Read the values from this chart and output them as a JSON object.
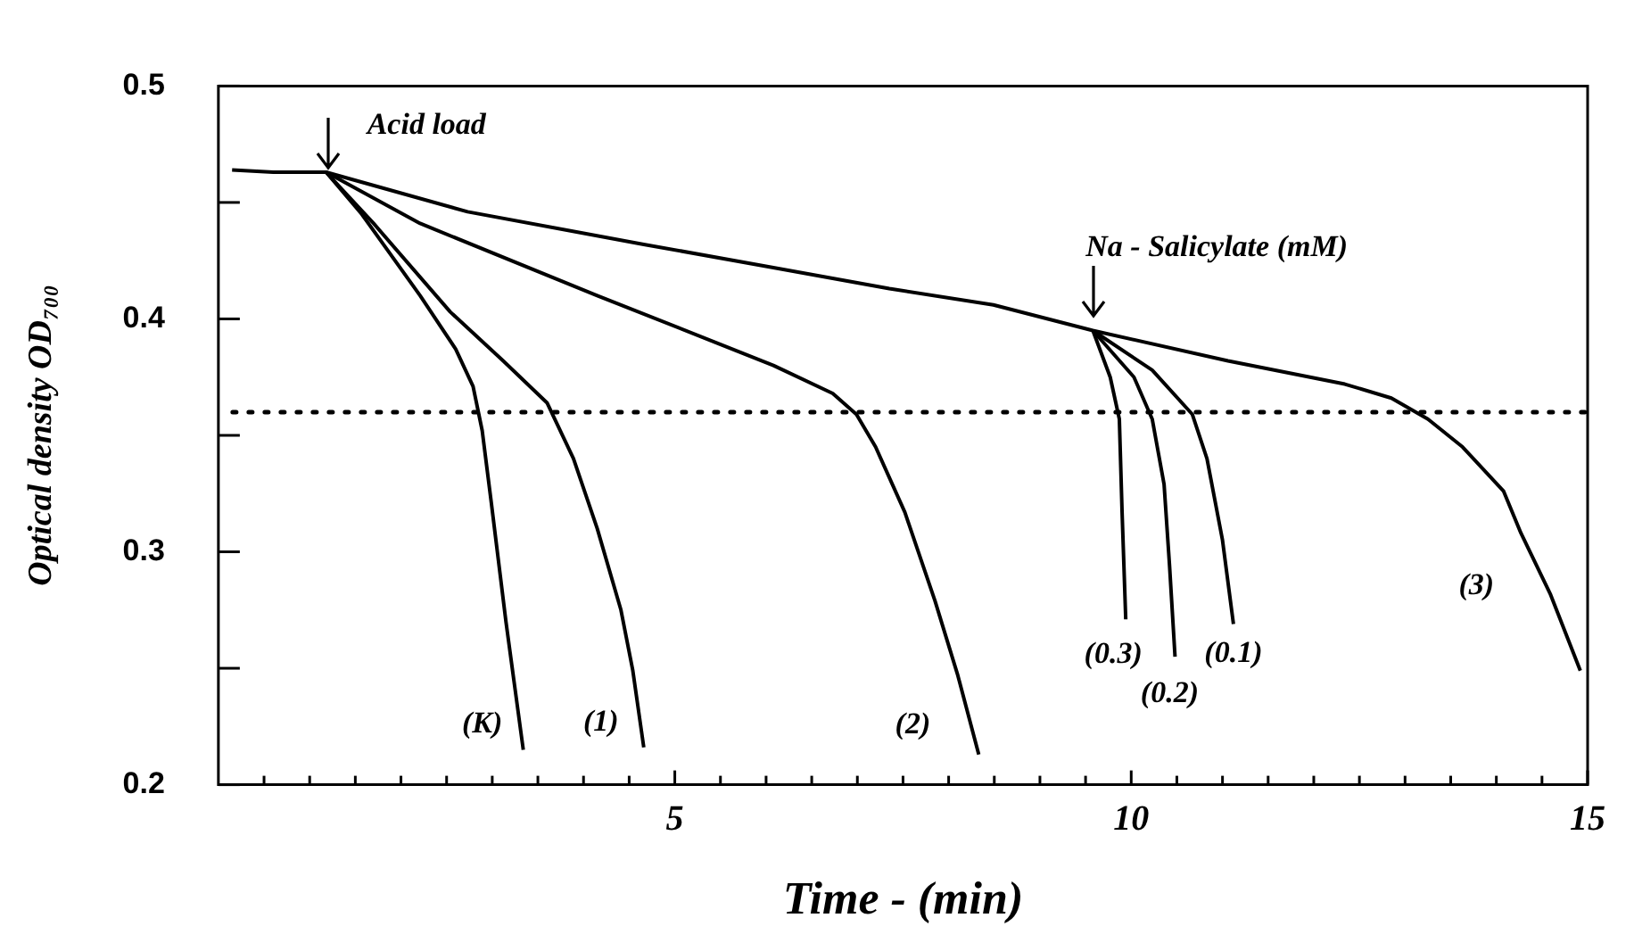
{
  "chart_data": {
    "type": "line",
    "xlabel": "Time - (min)",
    "ylabel": "Optical density OD₇₀₀",
    "xlim": [
      0,
      15
    ],
    "ylim": [
      0.2,
      0.5
    ],
    "xticks": [
      {
        "value": 0.5,
        "label": null
      },
      {
        "value": 1,
        "label": null
      },
      {
        "value": 1.5,
        "label": null
      },
      {
        "value": 2,
        "label": null
      },
      {
        "value": 2.5,
        "label": null
      },
      {
        "value": 3,
        "label": null
      },
      {
        "value": 3.5,
        "label": null
      },
      {
        "value": 4,
        "label": null
      },
      {
        "value": 4.5,
        "label": null
      },
      5,
      {
        "value": 5.5,
        "label": null
      },
      {
        "value": 6,
        "label": null
      },
      {
        "value": 6.5,
        "label": null
      },
      {
        "value": 7,
        "label": null
      },
      {
        "value": 7.5,
        "label": null
      },
      {
        "value": 8,
        "label": null
      },
      {
        "value": 8.5,
        "label": null
      },
      {
        "value": 9,
        "label": null
      },
      {
        "value": 9.5,
        "label": null
      },
      10,
      {
        "value": 10.5,
        "label": null
      },
      {
        "value": 11,
        "label": null
      },
      {
        "value": 11.5,
        "label": null
      },
      {
        "value": 12,
        "label": null
      },
      {
        "value": 12.5,
        "label": null
      },
      {
        "value": 13,
        "label": null
      },
      {
        "value": 13.5,
        "label": null
      },
      {
        "value": 14,
        "label": null
      },
      {
        "value": 14.5,
        "label": null
      },
      15
    ],
    "yticks": [
      0.2,
      {
        "value": 0.25,
        "label": null
      },
      0.3,
      {
        "value": 0.35,
        "label": null
      },
      0.4,
      {
        "value": 0.45,
        "label": null
      },
      0.5
    ],
    "grid": false,
    "legend": false,
    "marker": "none",
    "line_style": "solid",
    "series": [
      {
        "color": "#000000",
        "x": [
          0.15,
          0.6,
          1.18,
          2.73,
          4.66,
          6.08,
          7.35,
          8.49,
          9.58,
          11.06,
          12.34,
          12.85,
          13.25,
          13.63,
          14.08,
          14.27,
          14.59,
          14.92
        ],
        "values": [
          0.464,
          0.463,
          0.463,
          0.446,
          0.432,
          0.422,
          0.413,
          0.406,
          0.395,
          0.382,
          0.372,
          0.366,
          0.357,
          0.345,
          0.326,
          0.308,
          0.282,
          0.249
        ]
      },
      {
        "color": "#000000",
        "x": [
          1.18,
          1.57,
          2.21,
          2.6,
          2.79,
          2.89,
          2.99,
          3.15,
          3.34
        ],
        "values": [
          0.463,
          0.445,
          0.41,
          0.387,
          0.371,
          0.352,
          0.321,
          0.27,
          0.215
        ]
      },
      {
        "color": "#000000",
        "x": [
          1.18,
          1.7,
          2.54,
          3.12,
          3.6,
          3.89,
          4.15,
          4.41,
          4.54,
          4.66
        ],
        "values": [
          0.463,
          0.441,
          0.403,
          0.382,
          0.364,
          0.34,
          0.31,
          0.275,
          0.249,
          0.216
        ]
      },
      {
        "color": "#000000",
        "x": [
          1.18,
          2.21,
          4.15,
          5.44,
          6.08,
          6.73,
          6.99,
          7.2,
          7.52,
          7.85,
          8.1,
          8.33
        ],
        "values": [
          0.463,
          0.441,
          0.41,
          0.39,
          0.38,
          0.368,
          0.359,
          0.345,
          0.317,
          0.279,
          0.247,
          0.213
        ]
      },
      {
        "color": "#000000",
        "x": [
          9.58,
          9.77,
          9.87,
          9.9,
          9.94
        ],
        "values": [
          0.395,
          0.375,
          0.357,
          0.317,
          0.271
        ]
      },
      {
        "color": "#000000",
        "x": [
          9.58,
          10.03,
          10.23,
          10.36,
          10.42,
          10.48
        ],
        "values": [
          0.395,
          0.375,
          0.357,
          0.329,
          0.294,
          0.255
        ]
      },
      {
        "color": "#000000",
        "x": [
          9.58,
          10.23,
          10.67,
          10.83,
          11.0,
          11.12
        ],
        "values": [
          0.395,
          0.378,
          0.359,
          0.34,
          0.305,
          0.269
        ]
      }
    ],
    "ref_lines": [
      {
        "axis": "y",
        "value": 0.36,
        "line_style": "dotted",
        "color": "#000000"
      }
    ],
    "annotations": [
      {
        "text": "Acid load",
        "x": 1.2,
        "y": 0.463
      },
      {
        "text": "Na - Salicylate (mM)",
        "x": 9.58,
        "y": 0.395
      },
      {
        "text": "(K)",
        "x": 3.34,
        "y": 0.215
      },
      {
        "text": "(1)",
        "x": 4.66,
        "y": 0.216
      },
      {
        "text": "(2)",
        "x": 8.33,
        "y": 0.213
      },
      {
        "text": "(3)",
        "x": 14.27,
        "y": 0.308
      },
      {
        "text": "(0.3)",
        "x": 9.94,
        "y": 0.271
      },
      {
        "text": "(0.2)",
        "x": 10.48,
        "y": 0.255
      },
      {
        "text": "(0.1)",
        "x": 11.12,
        "y": 0.269
      }
    ]
  }
}
